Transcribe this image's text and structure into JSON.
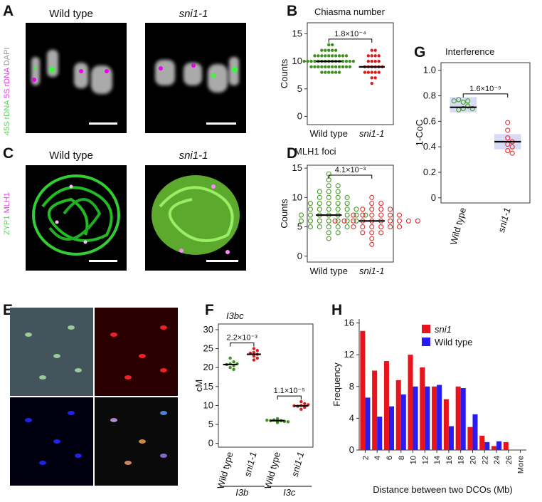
{
  "image_panels": [
    {
      "label": "A",
      "titles": [
        "Wild type",
        "sni1-1"
      ],
      "stains": [
        "45S rDNA",
        "5S rDNA",
        "DAPI"
      ]
    },
    {
      "label": "C",
      "titles": [
        "Wild type",
        "sni1-1"
      ],
      "stains": [
        "ZYP1",
        "MLH1"
      ]
    },
    {
      "label": "E"
    }
  ],
  "chart_data": [
    {
      "type": "dot",
      "label": "B",
      "title": "Chiasma number",
      "y_label": "Counts",
      "categories": [
        "Wild type",
        "sni1-1"
      ],
      "ylim": [
        -1.5,
        17
      ],
      "yticks": [
        0,
        5,
        10,
        15
      ],
      "hollow": false,
      "colors": [
        "#3f8f22",
        "#d62020"
      ],
      "points": [
        [
          8,
          8,
          8,
          8,
          8,
          8,
          9,
          9,
          9,
          9,
          9,
          9,
          9,
          9,
          9,
          9,
          9,
          9,
          10,
          10,
          10,
          10,
          10,
          10,
          10,
          10,
          10,
          10,
          10,
          10,
          10,
          10,
          10,
          11,
          11,
          11,
          11,
          11,
          11,
          11,
          11,
          11,
          11,
          12,
          12,
          12,
          12,
          12,
          13,
          13
        ],
        [
          6,
          7,
          7,
          8,
          8,
          8,
          8,
          8,
          9,
          9,
          9,
          9,
          9,
          9,
          10,
          10,
          10,
          10,
          11,
          11,
          11,
          11,
          12,
          12
        ]
      ],
      "medians": [
        10,
        9
      ],
      "annotations": [
        "1.8×10⁻⁴"
      ]
    },
    {
      "type": "dot",
      "label": "D",
      "title": "MLH1 foci",
      "y_label": "Counts",
      "categories": [
        "Wild type",
        "sni1-1"
      ],
      "ylim": [
        -1,
        15.5
      ],
      "yticks": [
        0,
        5,
        10,
        15
      ],
      "hollow": true,
      "colors": [
        "#4a9a2a",
        "#e03030"
      ],
      "points": [
        [
          3,
          4,
          4,
          5,
          5,
          5,
          5,
          5,
          6,
          6,
          6,
          6,
          6,
          6,
          6,
          7,
          7,
          7,
          7,
          7,
          7,
          7,
          7,
          8,
          8,
          8,
          8,
          8,
          8,
          9,
          9,
          9,
          9,
          9,
          10,
          10,
          10,
          10,
          11,
          11,
          11,
          12,
          12,
          13,
          14
        ],
        [
          2,
          3,
          4,
          4,
          4,
          5,
          5,
          5,
          5,
          5,
          5,
          6,
          6,
          6,
          6,
          6,
          6,
          6,
          6,
          6,
          6,
          7,
          7,
          7,
          7,
          7,
          7,
          8,
          8,
          8,
          8,
          9,
          9,
          10
        ]
      ],
      "medians": [
        7,
        6
      ],
      "annotations": [
        "4.1×10⁻³"
      ]
    },
    {
      "type": "dot",
      "label": "G",
      "title": "Interference",
      "y_label": "1-CoC",
      "categories": [
        "Wild type",
        "sni1-1"
      ],
      "ylim": [
        -0.04,
        1.06
      ],
      "yticks": [
        0,
        0.2,
        0.4,
        0.6,
        0.8,
        {
          "value": 1,
          "label": "1.0"
        }
      ],
      "hollow": true,
      "colors": [
        "#4a9a2a",
        "#e03030"
      ],
      "points": [
        [
          0.7,
          0.72,
          0.75,
          0.76,
          0.77,
          0.76,
          0.69,
          0.7
        ],
        [
          0.59,
          0.53,
          0.47,
          0.44,
          0.42,
          0.4,
          0.37,
          0.35
        ]
      ],
      "medians": [
        0.71,
        0.44
      ],
      "ci": [
        [
          0.67,
          0.79
        ],
        [
          0.38,
          0.5
        ]
      ],
      "annotations": [
        "1.6×10⁻⁹"
      ]
    },
    {
      "type": "dot",
      "label": "F",
      "title": "I3bc",
      "y_label": "cM",
      "categories": [
        "Wild type",
        "sni1-1",
        "Wild type",
        "sni1-1"
      ],
      "groups": [
        "I3b",
        "I3c"
      ],
      "ylim": [
        -1,
        31.5
      ],
      "yticks": [
        0,
        5,
        10,
        15,
        20,
        25,
        30
      ],
      "hollow": false,
      "colors": [
        "#3f8f22",
        "#d62020",
        "#3f8f22",
        "#d62020"
      ],
      "points": [
        [
          20,
          20.5,
          21,
          20.8,
          22.5,
          21,
          19.5,
          21.5
        ],
        [
          22,
          23,
          23.5,
          24,
          25,
          24.5,
          22.5,
          23.8
        ],
        [
          5.5,
          6,
          6.2,
          6.5,
          5.8,
          6,
          5.7,
          6.1
        ],
        [
          9,
          9.5,
          10,
          10.5,
          11,
          9.8,
          10.2,
          9.9
        ]
      ],
      "medians": [
        20.8,
        23.5,
        6,
        9.9
      ],
      "annotations": [
        "2.2×10⁻³",
        "1.1×10⁻⁵"
      ]
    },
    {
      "type": "bar",
      "label": "H",
      "x_label": "Distance between two DCOs (Mb)",
      "y_label": "Frequency",
      "categories": [
        "2",
        "4",
        "6",
        "8",
        "10",
        "12",
        "14",
        "16",
        "18",
        "20",
        "22",
        "24",
        "26",
        "More"
      ],
      "ylim": [
        0,
        16.5
      ],
      "yticks": [
        0,
        4,
        8,
        12,
        16
      ],
      "series": [
        {
          "name": "sni1",
          "color": "#e8141b",
          "values": [
            15,
            10,
            11.2,
            8.8,
            12,
            10.4,
            8,
            6.4,
            8,
            2.9,
            1.8,
            0.5,
            1,
            0
          ]
        },
        {
          "name": "Wild type",
          "color": "#2a1cf0",
          "values": [
            6.6,
            4.2,
            5.5,
            7,
            8,
            8,
            8.2,
            3,
            7.8,
            4.5,
            1,
            1.1,
            0,
            0
          ]
        }
      ]
    }
  ]
}
